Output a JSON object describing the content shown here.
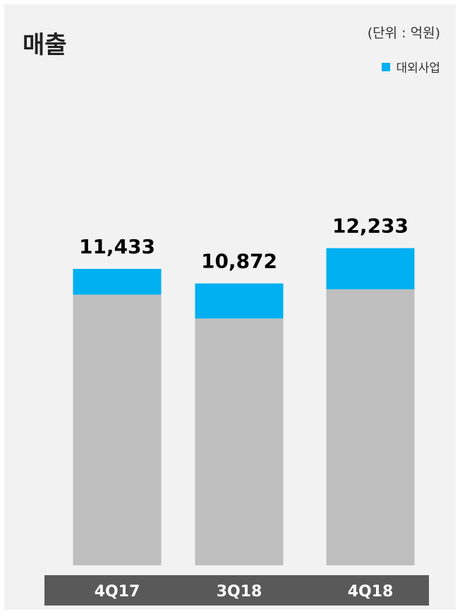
{
  "colors": {
    "background": "#f2f2f2",
    "external_business": "#00b0f0",
    "other": "#bfbfbf",
    "axis_band": "#595959",
    "label_text": "#000000",
    "category_text": "#ffffff"
  },
  "chart_data": {
    "type": "bar",
    "stacked": true,
    "title": "매출",
    "unit_label": "(단위 : 억원)",
    "categories": [
      "4Q17",
      "3Q18",
      "4Q18"
    ],
    "totals": [
      11433,
      10872,
      12233
    ],
    "total_labels": [
      "11,433",
      "10,872",
      "12,233"
    ],
    "series": [
      {
        "values": [
          10440,
          9519,
          10646
        ]
      },
      {
        "name": "대외사업",
        "values": [
          993,
          1353,
          1587
        ]
      }
    ],
    "legend_position": "top-right",
    "ylim": [
      0,
      13000
    ],
    "grid": false
  }
}
